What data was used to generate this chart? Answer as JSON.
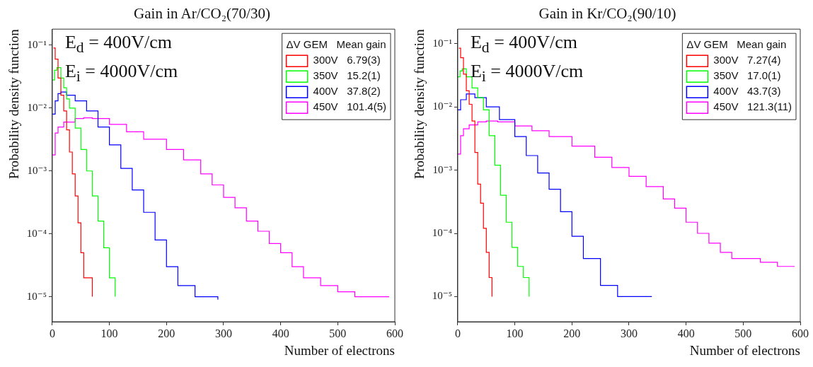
{
  "chart_data": [
    {
      "type": "step",
      "title": "Gain in Ar/CO₂(70/30)",
      "xlabel": "Number of electrons",
      "ylabel": "Probability density function",
      "legend_title": "ΔV GEM   Mean gain",
      "annotations": [
        "E$_{d}$ = 400V/cm",
        "E$_{i}$ = 4000V/cm"
      ],
      "xlim": [
        0,
        600
      ],
      "xticks": [
        0,
        100,
        200,
        300,
        400,
        500,
        600
      ],
      "ylim": [
        4e-06,
        0.18
      ],
      "yticks": [
        {
          "value": 1e-05,
          "label": "10⁻⁵"
        },
        {
          "value": 0.0001,
          "label": "10⁻⁴"
        },
        {
          "value": 0.001,
          "label": "10⁻³"
        },
        {
          "value": 0.01,
          "label": "10⁻²"
        },
        {
          "value": 0.1,
          "label": "10⁻¹"
        }
      ],
      "log": "y",
      "grid": false,
      "legend": "top right",
      "series": [
        {
          "name": "300V   6.79(3)",
          "color": "#ff0000",
          "x": [
            2,
            5,
            10,
            15,
            20,
            25,
            30,
            35,
            40,
            45,
            50,
            55,
            70
          ],
          "values": [
            0.09,
            0.06,
            0.03,
            0.016,
            0.009,
            0.0045,
            0.002,
            0.0009,
            0.0004,
            0.00015,
            5e-05,
            2e-05,
            1e-05
          ]
        },
        {
          "name": "350V   15.2(1)",
          "color": "#00ff00",
          "x": [
            0,
            4,
            8,
            15,
            20,
            25,
            30,
            40,
            50,
            60,
            70,
            80,
            90,
            100,
            110
          ],
          "values": [
            0.028,
            0.04,
            0.044,
            0.03,
            0.021,
            0.014,
            0.01,
            0.0048,
            0.0022,
            0.001,
            0.0004,
            0.00016,
            6e-05,
            2e-05,
            1e-05
          ]
        },
        {
          "name": "400V   37.8(2)",
          "color": "#0000ff",
          "x": [
            0,
            5,
            10,
            15,
            25,
            40,
            60,
            80,
            100,
            120,
            140,
            160,
            180,
            200,
            220,
            250,
            290
          ],
          "values": [
            0.008,
            0.013,
            0.017,
            0.018,
            0.016,
            0.013,
            0.009,
            0.005,
            0.0026,
            0.0011,
            0.0005,
            0.00022,
            8e-05,
            3e-05,
            1.5e-05,
            1e-05,
            9e-06
          ]
        },
        {
          "name": "450V   101.4(5)",
          "color": "#ff00ff",
          "x": [
            0,
            5,
            10,
            20,
            40,
            55,
            70,
            100,
            130,
            160,
            200,
            230,
            260,
            280,
            300,
            320,
            340,
            360,
            380,
            400,
            420,
            440,
            470,
            500,
            530,
            560,
            590
          ],
          "values": [
            0.0018,
            0.004,
            0.005,
            0.006,
            0.0068,
            0.007,
            0.0068,
            0.0055,
            0.0042,
            0.0032,
            0.0022,
            0.0015,
            0.0009,
            0.0006,
            0.00038,
            0.00026,
            0.00016,
            0.00011,
            7e-05,
            5e-05,
            3e-05,
            2e-05,
            1.5e-05,
            1.2e-05,
            1e-05,
            1e-05,
            1e-05
          ]
        }
      ]
    },
    {
      "type": "step",
      "title": "Gain in Kr/CO₂(90/10)",
      "xlabel": "Number of electrons",
      "ylabel": "Probability density function",
      "legend_title": "ΔV GEM   Mean gain",
      "annotations": [
        "E$_{d}$ = 400V/cm",
        "E$_{i}$ = 4000V/cm"
      ],
      "xlim": [
        0,
        600
      ],
      "xticks": [
        0,
        100,
        200,
        300,
        400,
        500,
        600
      ],
      "ylim": [
        4e-06,
        0.17
      ],
      "yticks": [
        {
          "value": 1e-05,
          "label": "10⁻⁵"
        },
        {
          "value": 0.0001,
          "label": "10⁻⁴"
        },
        {
          "value": 0.001,
          "label": "10⁻³"
        },
        {
          "value": 0.01,
          "label": "10⁻²"
        },
        {
          "value": 0.1,
          "label": "10⁻¹"
        }
      ],
      "log": "y",
      "grid": false,
      "legend": "top right",
      "series": [
        {
          "name": "300V   7.27(4)",
          "color": "#ff0000",
          "x": [
            2,
            5,
            10,
            15,
            20,
            25,
            30,
            35,
            40,
            45,
            50,
            55,
            60
          ],
          "values": [
            0.085,
            0.06,
            0.033,
            0.018,
            0.011,
            0.006,
            0.0019,
            0.0006,
            0.0003,
            0.00012,
            5e-05,
            2e-05,
            1e-05
          ]
        },
        {
          "name": "350V   17.0(1)",
          "color": "#00ff00",
          "x": [
            0,
            4,
            8,
            15,
            25,
            35,
            45,
            55,
            65,
            75,
            85,
            95,
            105,
            115,
            125
          ],
          "values": [
            0.03,
            0.037,
            0.04,
            0.03,
            0.02,
            0.014,
            0.009,
            0.0035,
            0.0012,
            0.0004,
            0.00015,
            6e-05,
            3e-05,
            2e-05,
            1e-05
          ]
        },
        {
          "name": "400V   43.7(3)",
          "color": "#0000ff",
          "x": [
            0,
            5,
            15,
            30,
            50,
            73,
            100,
            120,
            140,
            160,
            180,
            200,
            220,
            250,
            280,
            320,
            340
          ],
          "values": [
            0.009,
            0.013,
            0.016,
            0.014,
            0.01,
            0.0063,
            0.0034,
            0.0017,
            0.0009,
            0.0005,
            0.00022,
            9e-05,
            4e-05,
            1.5e-05,
            1e-05,
            1e-05,
            1e-05
          ]
        },
        {
          "name": "450V   121.3(11)",
          "color": "#ff00ff",
          "x": [
            0,
            5,
            10,
            20,
            35,
            50,
            70,
            100,
            130,
            160,
            200,
            240,
            270,
            300,
            330,
            360,
            380,
            400,
            420,
            440,
            460,
            480,
            500,
            530,
            560,
            590
          ],
          "values": [
            0.0018,
            0.0035,
            0.0045,
            0.0052,
            0.0058,
            0.006,
            0.0058,
            0.005,
            0.0042,
            0.0034,
            0.0024,
            0.0016,
            0.0011,
            0.0008,
            0.00055,
            0.00035,
            0.00025,
            0.00015,
            0.0001,
            7e-05,
            5e-05,
            4e-05,
            4e-05,
            3.5e-05,
            3e-05,
            3e-05
          ]
        }
      ]
    }
  ]
}
